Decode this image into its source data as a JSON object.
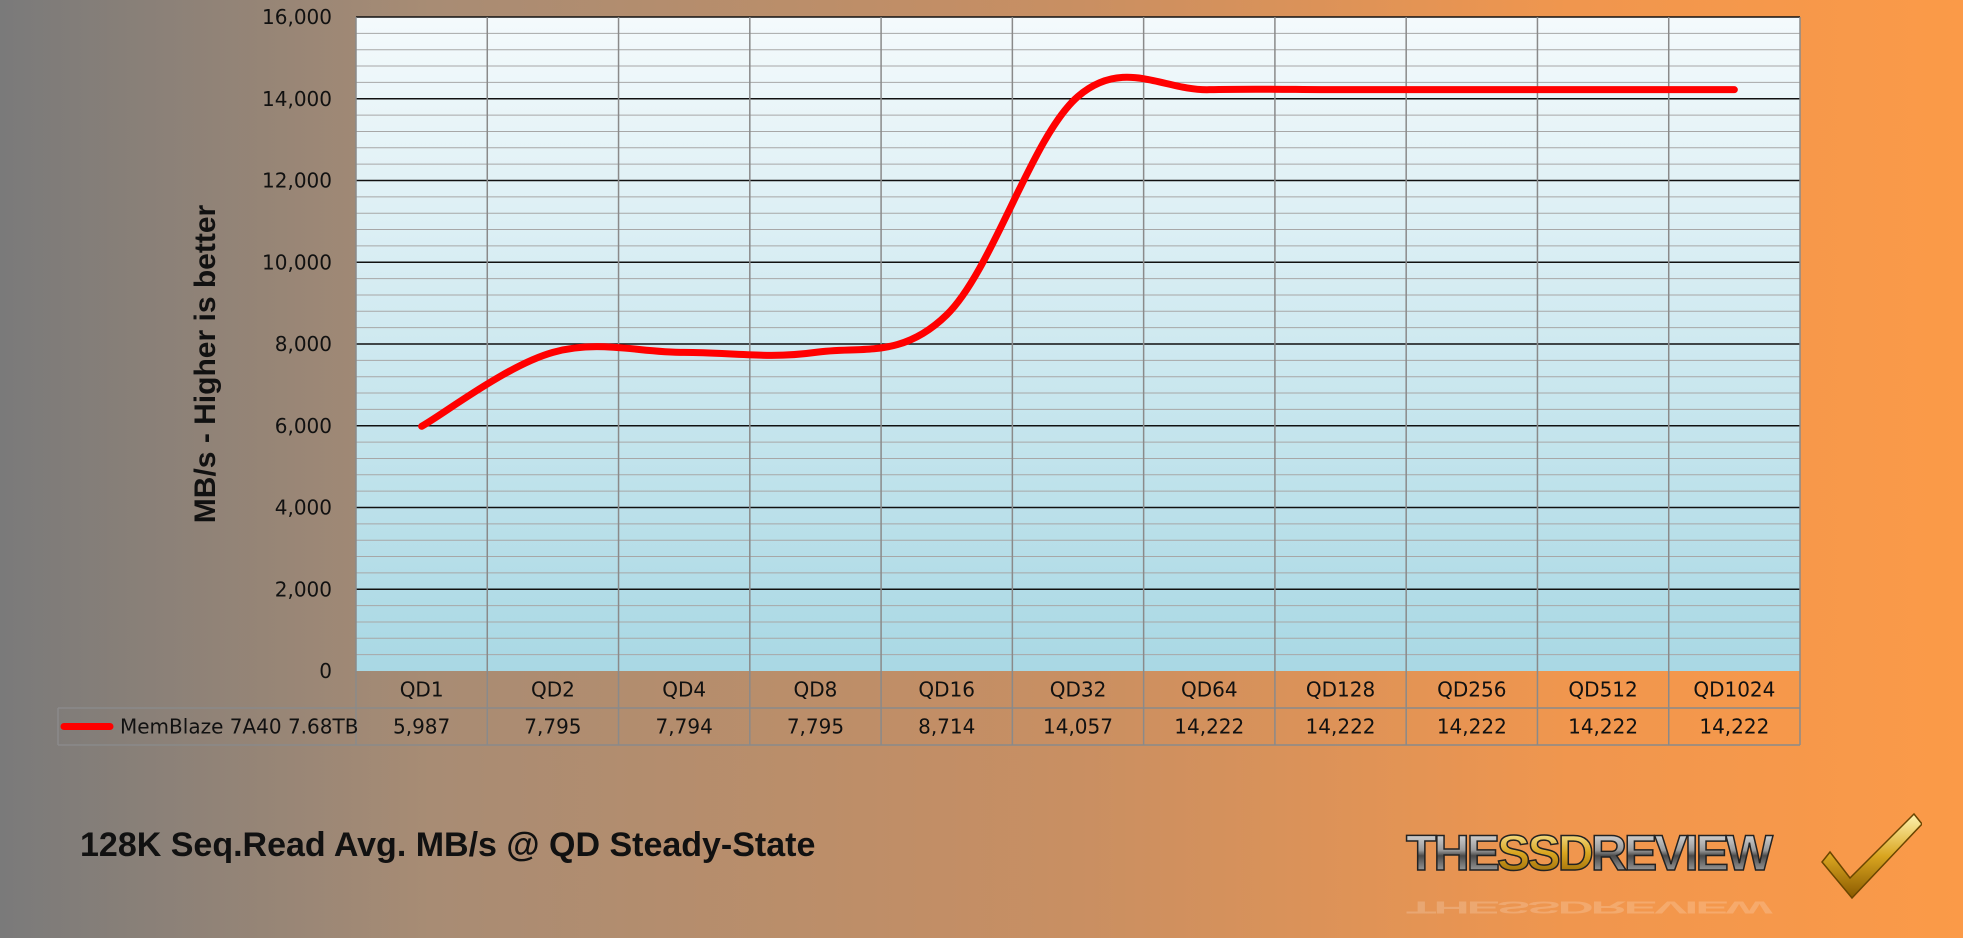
{
  "chart_data": {
    "type": "line",
    "title": "128K Seq.Read Avg. MB/s @ QD Steady-State",
    "ylabel": "MB/s - Higher is better",
    "xlabel": "",
    "ylim": [
      0,
      16000
    ],
    "yticks": [
      0,
      2000,
      4000,
      6000,
      8000,
      10000,
      12000,
      14000,
      16000
    ],
    "ytick_labels": [
      "0",
      "2,000",
      "4,000",
      "6,000",
      "8,000",
      "10,000",
      "12,000",
      "14,000",
      "16,000"
    ],
    "categories": [
      "QD1",
      "QD2",
      "QD4",
      "QD8",
      "QD16",
      "QD32",
      "QD64",
      "QD128",
      "QD256",
      "QD512",
      "QD1024"
    ],
    "series": [
      {
        "name": "MemBlaze 7A40 7.68TB",
        "color": "#ff0000",
        "values": [
          5987,
          7795,
          7794,
          7795,
          8714,
          14057,
          14222,
          14222,
          14222,
          14222,
          14222
        ],
        "value_labels": [
          "5,987",
          "7,795",
          "7,794",
          "7,795",
          "8,714",
          "14,057",
          "14,222",
          "14,222",
          "14,222",
          "14,222",
          "14,222"
        ]
      }
    ],
    "grid": true,
    "legend": "data-table"
  },
  "logo": {
    "text_part1": "THE",
    "text_part2": "SSD",
    "text_part3": "REVIEW"
  }
}
